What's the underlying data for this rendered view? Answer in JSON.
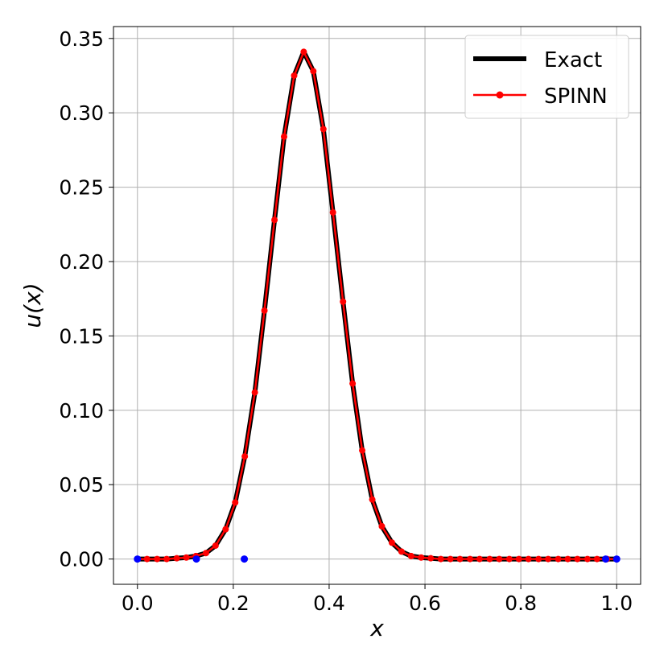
{
  "chart_data": {
    "type": "line",
    "title": "",
    "xlabel": "x",
    "ylabel": "u(x)",
    "xlim": [
      -0.05,
      1.05
    ],
    "ylim": [
      -0.017,
      0.358
    ],
    "grid": true,
    "legend_position": "top-right",
    "x_ticks": [
      0.0,
      0.2,
      0.4,
      0.6,
      0.8,
      1.0
    ],
    "x_tick_labels": [
      "0.0",
      "0.2",
      "0.4",
      "0.6",
      "0.8",
      "1.0"
    ],
    "y_ticks": [
      0.0,
      0.05,
      0.1,
      0.15,
      0.2,
      0.25,
      0.3,
      0.35
    ],
    "y_tick_labels": [
      "0.00",
      "0.05",
      "0.10",
      "0.15",
      "0.20",
      "0.25",
      "0.30",
      "0.35"
    ],
    "series": [
      {
        "name": "Exact",
        "color": "#000000",
        "x": [
          0.0,
          0.02,
          0.041,
          0.061,
          0.082,
          0.102,
          0.122,
          0.143,
          0.163,
          0.184,
          0.204,
          0.224,
          0.245,
          0.265,
          0.286,
          0.306,
          0.327,
          0.347,
          0.367,
          0.388,
          0.408,
          0.429,
          0.449,
          0.469,
          0.49,
          0.51,
          0.531,
          0.551,
          0.571,
          0.592,
          0.612,
          0.633,
          0.653,
          0.673,
          0.694,
          0.714,
          0.735,
          0.755,
          0.776,
          0.796,
          0.816,
          0.837,
          0.857,
          0.878,
          0.898,
          0.918,
          0.939,
          0.959,
          0.98,
          1.0
        ],
        "y": [
          0.0,
          0.0,
          0.0,
          0.0,
          0.0005,
          0.001,
          0.002,
          0.004,
          0.009,
          0.02,
          0.038,
          0.069,
          0.112,
          0.167,
          0.228,
          0.284,
          0.325,
          0.341,
          0.328,
          0.289,
          0.233,
          0.173,
          0.118,
          0.073,
          0.04,
          0.022,
          0.011,
          0.005,
          0.002,
          0.001,
          0.0005,
          0.0,
          0.0,
          0.0,
          0.0,
          0.0,
          0.0,
          0.0,
          0.0,
          0.0,
          0.0,
          0.0,
          0.0,
          0.0,
          0.0,
          0.0,
          0.0,
          0.0,
          0.0,
          0.0
        ]
      },
      {
        "name": "SPINN",
        "color": "#ff0000",
        "x": [
          0.0,
          0.02,
          0.041,
          0.061,
          0.082,
          0.102,
          0.122,
          0.143,
          0.163,
          0.184,
          0.204,
          0.224,
          0.245,
          0.265,
          0.286,
          0.306,
          0.327,
          0.347,
          0.367,
          0.388,
          0.408,
          0.429,
          0.449,
          0.469,
          0.49,
          0.51,
          0.531,
          0.551,
          0.571,
          0.592,
          0.612,
          0.633,
          0.653,
          0.673,
          0.694,
          0.714,
          0.735,
          0.755,
          0.776,
          0.796,
          0.816,
          0.837,
          0.857,
          0.878,
          0.898,
          0.918,
          0.939,
          0.959,
          0.98,
          1.0
        ],
        "y": [
          0.0,
          0.0,
          0.0,
          0.0,
          0.0005,
          0.001,
          0.002,
          0.004,
          0.009,
          0.02,
          0.038,
          0.069,
          0.112,
          0.167,
          0.228,
          0.284,
          0.325,
          0.341,
          0.328,
          0.289,
          0.233,
          0.173,
          0.118,
          0.073,
          0.04,
          0.022,
          0.011,
          0.005,
          0.002,
          0.001,
          0.0005,
          0.0,
          0.0,
          0.0,
          0.0,
          0.0,
          0.0,
          0.0,
          0.0,
          0.0,
          0.0,
          0.0,
          0.0,
          0.0,
          0.0,
          0.0,
          0.0,
          0.0,
          0.0,
          0.0
        ]
      }
    ],
    "nodes": {
      "color": "#0000ff",
      "x": [
        0.0,
        0.123,
        0.223,
        0.977,
        1.0
      ],
      "y": [
        0.0,
        0.0,
        0.0,
        0.0,
        0.0
      ]
    }
  }
}
